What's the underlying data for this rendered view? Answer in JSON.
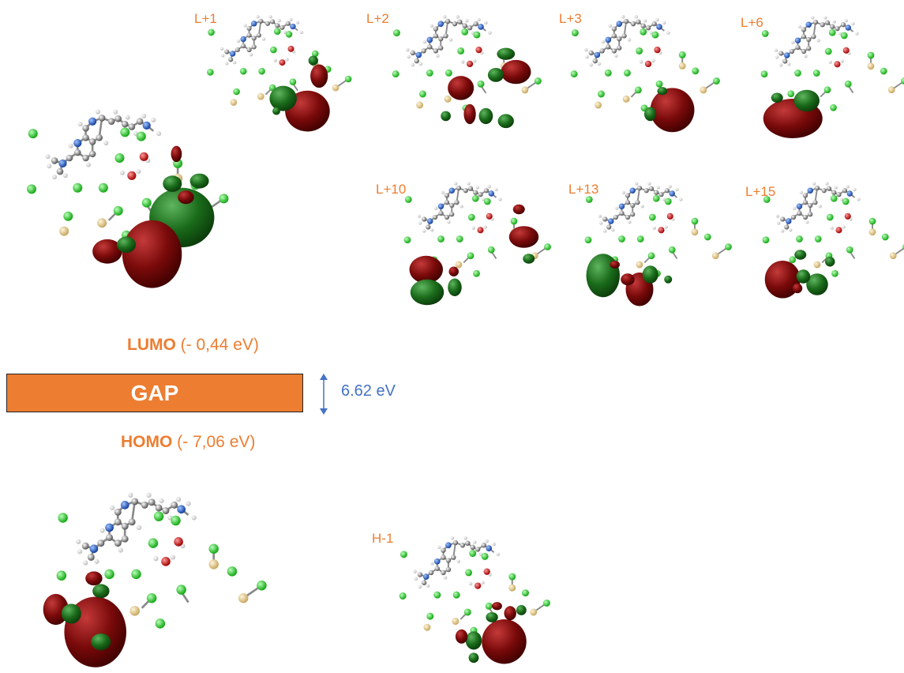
{
  "orbital_labels": {
    "l1": "L+1",
    "l2": "L+2",
    "l3": "L+3",
    "l6": "L+6",
    "l10": "L+10",
    "l13": "L+13",
    "l15": "L+15",
    "h1": "H-1"
  },
  "lumo": {
    "name": "LUMO",
    "energy": "(- 0,44 eV)"
  },
  "homo": {
    "name": "HOMO",
    "energy": "(- 7,06 eV)"
  },
  "gap": {
    "label": "GAP",
    "value": "6.62 eV"
  },
  "colors": {
    "label_orange": "#ED7D31",
    "gap_box": "#ED7D31",
    "gap_value_blue": "#4472C4",
    "lobe_positive": "#7A0A0A",
    "lobe_negative": "#1A6B1A",
    "atom_carbon": "#8C8C8C",
    "atom_nitrogen": "#1F5FCC",
    "atom_oxygen": "#CC0000",
    "atom_chlorine": "#22CC22",
    "atom_sulfur": "#E8D39A"
  }
}
